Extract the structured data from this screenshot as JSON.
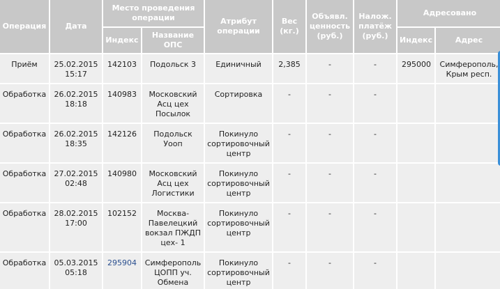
{
  "header": {
    "operation": "Операция",
    "date": "Дата",
    "place": "Место проведения операции",
    "index": "Индекс",
    "ops_name": "Название ОПС",
    "attribute": "Атрибут операции",
    "weight": "Вес (кг.)",
    "declared": "Объявл. ценность (руб.)",
    "cod": "Налож. платёж (руб.)",
    "addressed": "Адресовано",
    "addr_index": "Индекс",
    "address": "Адрес"
  },
  "rows": [
    {
      "operation": "Приём",
      "date": "25.02.2015",
      "time": "15:17",
      "index": "142103",
      "ops": "Подольск 3",
      "attribute": "Единичный",
      "weight": "2,385",
      "declared": "-",
      "cod": "-",
      "addr_index": "295000",
      "address": "Симферополь, Крым респ."
    },
    {
      "operation": "Обработка",
      "date": "26.02.2015",
      "time": "18:18",
      "index": "140983",
      "ops": "Московский Асц цех Посылок",
      "attribute": "Сортировка",
      "weight": "-",
      "declared": "-",
      "cod": "-",
      "addr_index": "",
      "address": ""
    },
    {
      "operation": "Обработка",
      "date": "26.02.2015",
      "time": "18:35",
      "index": "142126",
      "ops": "Подольск Уооп",
      "attribute": "Покинуло сортировочный центр",
      "weight": "-",
      "declared": "-",
      "cod": "-",
      "addr_index": "",
      "address": ""
    },
    {
      "operation": "Обработка",
      "date": "27.02.2015",
      "time": "02:48",
      "index": "140980",
      "ops": "Московский Асц цех Логистики",
      "attribute": "Покинуло сортировочный центр",
      "weight": "-",
      "declared": "-",
      "cod": "-",
      "addr_index": "",
      "address": ""
    },
    {
      "operation": "Обработка",
      "date": "28.02.2015",
      "time": "17:00",
      "index": "102152",
      "ops": "Москва-Павелецкий вокзал ПЖДП цех- 1",
      "attribute": "Покинуло сортировочный центр",
      "weight": "-",
      "declared": "-",
      "cod": "-",
      "addr_index": "",
      "address": ""
    },
    {
      "operation": "Обработка",
      "date": "05.03.2015",
      "time": "05:18",
      "index": "295904",
      "ops": "Симферополь ЦОПП уч. Обмена",
      "attribute": "Покинуло сортировочный центр",
      "weight": "-",
      "declared": "-",
      "cod": "-",
      "addr_index": "",
      "address": ""
    }
  ],
  "colors": {
    "header_bg": "#c8c8c8",
    "cell_bg": "#eeeeee",
    "link": "#2a4f8f",
    "scroll_tab": "#3a8fd8"
  }
}
